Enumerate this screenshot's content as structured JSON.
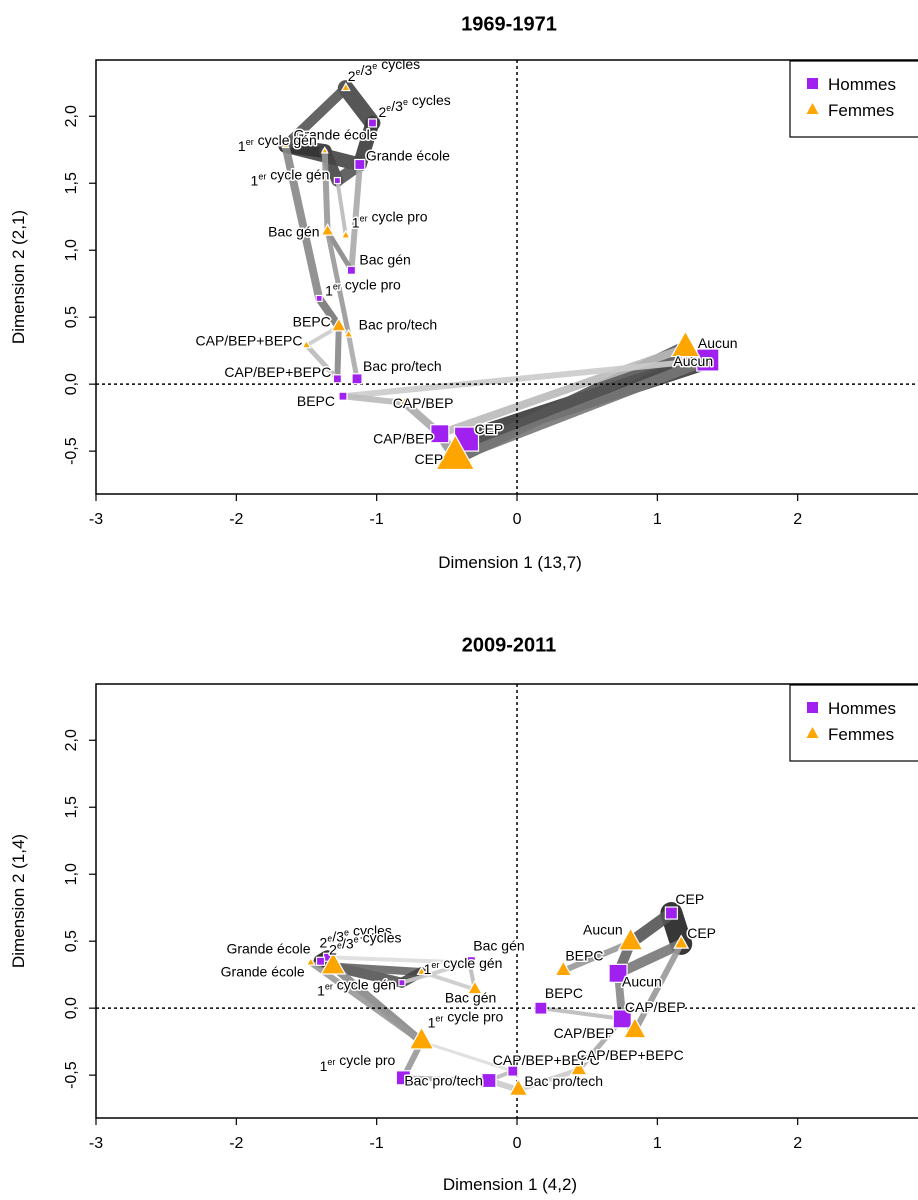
{
  "colors": {
    "hommes": "#A020F0",
    "femmes": "#FFA500"
  },
  "legend": {
    "hommes": "Hommes",
    "femmes": "Femmes"
  },
  "chart_data": [
    {
      "type": "scatter",
      "title": "1969-1971",
      "xlabel": "Dimension 1 (13,7)",
      "ylabel": "Dimension 2 (2,1)",
      "xlim": [
        -3,
        2.9
      ],
      "ylim": [
        -0.82,
        2.42
      ],
      "xticks": [
        "-3",
        "-2",
        "-1",
        "0",
        "1",
        "2"
      ],
      "yticks": [
        "-0,5",
        "0,0",
        "0,5",
        "1,0",
        "1,5",
        "2,0"
      ],
      "legend_position": "top-right",
      "reference_lines": {
        "x": 0,
        "y": 0
      },
      "series": [
        {
          "name": "Hommes",
          "points": [
            {
              "label": "2e/3e cycles",
              "x": -1.03,
              "y": 1.95,
              "size": 4
            },
            {
              "label": "Grande école",
              "x": -1.12,
              "y": 1.64,
              "size": 5
            },
            {
              "label": "1er cycle gén",
              "x": -1.28,
              "y": 1.52,
              "size": 3
            },
            {
              "label": "Bac gén",
              "x": -1.18,
              "y": 0.85,
              "size": 4
            },
            {
              "label": "1er cycle pro",
              "x": -1.41,
              "y": 0.64,
              "size": 3
            },
            {
              "label": "CAP/BEP+BEPC",
              "x": -1.28,
              "y": 0.04,
              "size": 4
            },
            {
              "label": "Bac pro/tech",
              "x": -1.14,
              "y": 0.04,
              "size": 5
            },
            {
              "label": "BEPC",
              "x": -1.24,
              "y": -0.09,
              "size": 4
            },
            {
              "label": "CAP/BEP",
              "x": -0.55,
              "y": -0.37,
              "size": 9
            },
            {
              "label": "CEP",
              "x": -0.36,
              "y": -0.41,
              "size": 12
            },
            {
              "label": "Aucun",
              "x": 1.36,
              "y": 0.18,
              "size": 11
            }
          ]
        },
        {
          "name": "Femmes",
          "points": [
            {
              "label": "2e/3e cycles",
              "x": -1.22,
              "y": 2.21,
              "size": 4
            },
            {
              "label": "Grande école",
              "x": -1.65,
              "y": 1.78,
              "size": 3
            },
            {
              "label": "1er cycle gén",
              "x": -1.37,
              "y": 1.74,
              "size": 3
            },
            {
              "label": "Bac gén",
              "x": -1.35,
              "y": 1.14,
              "size": 6
            },
            {
              "label": "1er cycle pro",
              "x": -1.22,
              "y": 1.11,
              "size": 4
            },
            {
              "label": "BEPC",
              "x": -1.27,
              "y": 0.43,
              "size": 7
            },
            {
              "label": "Bac pro/tech",
              "x": -1.2,
              "y": 0.37,
              "size": 4
            },
            {
              "label": "CAP/BEP+BEPC",
              "x": -1.5,
              "y": 0.29,
              "size": 4
            },
            {
              "label": "CAP/BEP",
              "x": -0.8,
              "y": -0.14,
              "size": 5
            },
            {
              "label": "CEP",
              "x": -0.44,
              "y": -0.55,
              "size": 19
            },
            {
              "label": "Aucun",
              "x": 1.2,
              "y": 0.27,
              "size": 14
            }
          ]
        }
      ]
    },
    {
      "type": "scatter",
      "title": "2009-2011",
      "xlabel": "Dimension 1 (4,2)",
      "ylabel": "Dimension 2 (1,4)",
      "xlim": [
        -3,
        2.9
      ],
      "ylim": [
        -0.82,
        2.42
      ],
      "xticks": [
        "-3",
        "-2",
        "-1",
        "0",
        "1",
        "2"
      ],
      "yticks": [
        "-0,5",
        "0,0",
        "0,5",
        "1,0",
        "1,5",
        "2,0"
      ],
      "legend_position": "top-right",
      "reference_lines": {
        "x": 0,
        "y": 0
      },
      "series": [
        {
          "name": "Hommes",
          "points": [
            {
              "label": "CEP",
              "x": 1.1,
              "y": 0.71,
              "size": 6
            },
            {
              "label": "Aucun",
              "x": 0.72,
              "y": 0.26,
              "size": 9
            },
            {
              "label": "BEPC",
              "x": 0.17,
              "y": 0.0,
              "size": 6
            },
            {
              "label": "CAP/BEP",
              "x": 0.75,
              "y": -0.08,
              "size": 9
            },
            {
              "label": "CAP/BEP+BEPC",
              "x": -0.03,
              "y": -0.47,
              "size": 5
            },
            {
              "label": "Bac pro/tech",
              "x": -0.2,
              "y": -0.54,
              "size": 7
            },
            {
              "label": "Bac gén",
              "x": -0.34,
              "y": 0.34,
              "size": 6
            },
            {
              "label": "1er cycle pro",
              "x": -0.81,
              "y": -0.52,
              "size": 7
            },
            {
              "label": "1er cycle gén",
              "x": -0.82,
              "y": 0.19,
              "size": 3
            },
            {
              "label": "2e/3e cycles",
              "x": -1.35,
              "y": 0.38,
              "size": 4
            },
            {
              "label": "Grande école",
              "x": -1.4,
              "y": 0.35,
              "size": 4
            }
          ]
        },
        {
          "name": "Femmes",
          "points": [
            {
              "label": "CEP",
              "x": 1.17,
              "y": 0.48,
              "size": 7
            },
            {
              "label": "Aucun",
              "x": 0.81,
              "y": 0.49,
              "size": 12
            },
            {
              "label": "BEPC",
              "x": 0.33,
              "y": 0.28,
              "size": 8
            },
            {
              "label": "CAP/BEP",
              "x": 0.84,
              "y": -0.17,
              "size": 11
            },
            {
              "label": "CAP/BEP+BEPC",
              "x": 0.44,
              "y": -0.46,
              "size": 8
            },
            {
              "label": "Bac pro/tech",
              "x": 0.01,
              "y": -0.61,
              "size": 9
            },
            {
              "label": "Bac gén",
              "x": -0.3,
              "y": 0.14,
              "size": 7
            },
            {
              "label": "1er cycle pro",
              "x": -0.68,
              "y": -0.25,
              "size": 12
            },
            {
              "label": "1er cycle gén",
              "x": -0.68,
              "y": 0.27,
              "size": 4
            },
            {
              "label": "2e/3e cycles",
              "x": -1.31,
              "y": 0.31,
              "size": 12
            },
            {
              "label": "Grande école",
              "x": -1.47,
              "y": 0.34,
              "size": 4
            }
          ]
        }
      ]
    }
  ]
}
